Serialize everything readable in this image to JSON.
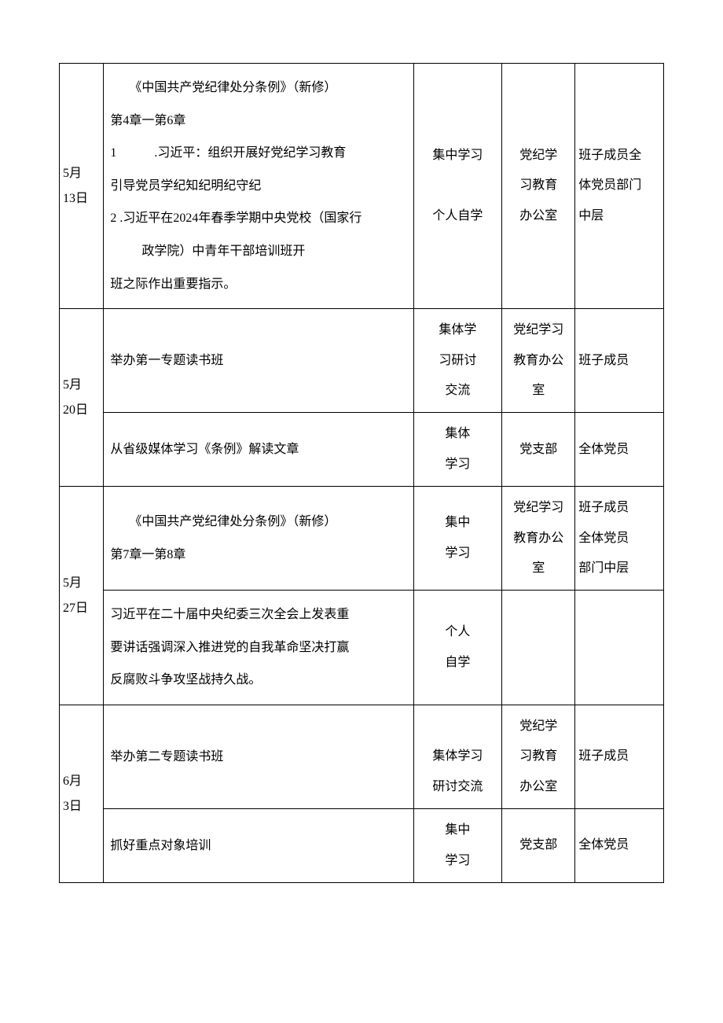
{
  "rows": [
    {
      "date": "5月\n13日",
      "content_lines": [
        {
          "cls": "indent-first",
          "text": "《中国共产党纪律处分条例》（新修）"
        },
        {
          "cls": "no-indent",
          "text": "第4章一第6章"
        },
        {
          "cls": "indent-list",
          "text": "1　　　.习近平：组织开展好党纪学习教育"
        },
        {
          "cls": "no-indent",
          "text": "引导党员学纪知纪明纪守纪"
        },
        {
          "cls": "indent-list",
          "text": "2 .习近平在2024年春季学期中央党校（国家行"
        },
        {
          "cls": "indent-sub",
          "text": "政学院）中青年干部培训班开"
        },
        {
          "cls": "no-indent",
          "text": "班之际作出重要指示。"
        }
      ],
      "method": "集中学习\n\n个人自学",
      "dept": "党纪学\n习教育\n办公室",
      "people": "班子成员全\n体党员部门\n中层",
      "people_align": "left",
      "rowspan_date": 1
    },
    {
      "date": "5月\n20日",
      "subrows": [
        {
          "content": "举办第一专题读书班",
          "method": "集体学\n习研讨\n交流",
          "dept": "党纪学习\n教育办公\n室",
          "people": "班子成员",
          "people_align": "left"
        },
        {
          "content": "从省级媒体学习《条例》解读文章",
          "method": "集体\n学习",
          "dept": "党支部",
          "people": "全体党员",
          "people_align": "left"
        }
      ]
    },
    {
      "date": "5月\n27日",
      "subrows": [
        {
          "content_lines": [
            {
              "cls": "indent-first",
              "text": "《中国共产党纪律处分条例》（新修）"
            },
            {
              "cls": "no-indent",
              "text": "第7章一第8章"
            }
          ],
          "method": "集中\n学习",
          "dept": "党纪学习\n教育办公\n室",
          "people": "班子成员\n全体党员\n部门中层",
          "people_align": "left"
        },
        {
          "content_lines": [
            {
              "cls": "no-indent",
              "text": "习近平在二十届中央纪委三次全会上发表重"
            },
            {
              "cls": "no-indent",
              "text": "要讲话强调深入推进党的自我革命坚决打赢"
            },
            {
              "cls": "no-indent",
              "text": "反腐败斗争攻坚战持久战。"
            }
          ],
          "method": "个人\n自学",
          "dept": "",
          "people": "",
          "people_align": "left"
        }
      ]
    },
    {
      "date": "6月\n3日",
      "subrows": [
        {
          "content": "举办第二专题读书班",
          "method": "\n集体学习\n研讨交流",
          "dept": "党纪学\n习教育\n办公室",
          "people": "班子成员",
          "people_align": "left",
          "method_valign": "bottom"
        },
        {
          "content": "抓好重点对象培训",
          "method": "集中\n学习",
          "dept": "党支部",
          "people": "全体党员",
          "people_align": "left"
        }
      ]
    }
  ]
}
